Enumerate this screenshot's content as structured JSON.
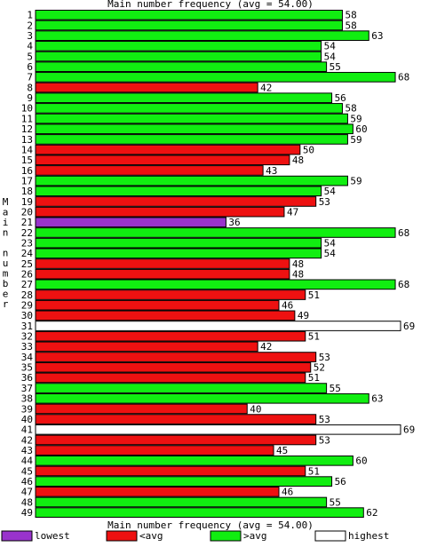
{
  "chart_data": {
    "type": "bar",
    "orientation": "horizontal",
    "title": "Main number frequency (avg = 54.00)",
    "footer": "Main number frequency (avg = 54.00)",
    "ylabel": "Main number",
    "average": 54,
    "xlim": [
      0,
      69
    ],
    "grid": false,
    "categories": [
      "1",
      "2",
      "3",
      "4",
      "5",
      "6",
      "7",
      "8",
      "9",
      "10",
      "11",
      "12",
      "13",
      "14",
      "15",
      "16",
      "17",
      "18",
      "19",
      "20",
      "21",
      "22",
      "23",
      "24",
      "25",
      "26",
      "27",
      "28",
      "29",
      "30",
      "31",
      "32",
      "33",
      "34",
      "35",
      "36",
      "37",
      "38",
      "39",
      "40",
      "41",
      "42",
      "43",
      "44",
      "45",
      "46",
      "47",
      "48",
      "49"
    ],
    "values": [
      58,
      58,
      63,
      54,
      54,
      55,
      68,
      42,
      56,
      58,
      59,
      60,
      59,
      50,
      48,
      43,
      59,
      54,
      53,
      47,
      36,
      68,
      54,
      54,
      48,
      48,
      68,
      51,
      46,
      49,
      69,
      51,
      42,
      53,
      52,
      51,
      55,
      63,
      40,
      53,
      69,
      53,
      45,
      60,
      51,
      56,
      46,
      55,
      62
    ],
    "legend": {
      "position": "bottom",
      "items": [
        {
          "label": "lowest",
          "color": "#9933cc"
        },
        {
          "label": "<avg",
          "color": "#ee1111"
        },
        {
          "label": ">avg",
          "color": "#11ee11"
        },
        {
          "label": "highest",
          "color": "#ffffff"
        }
      ]
    }
  }
}
